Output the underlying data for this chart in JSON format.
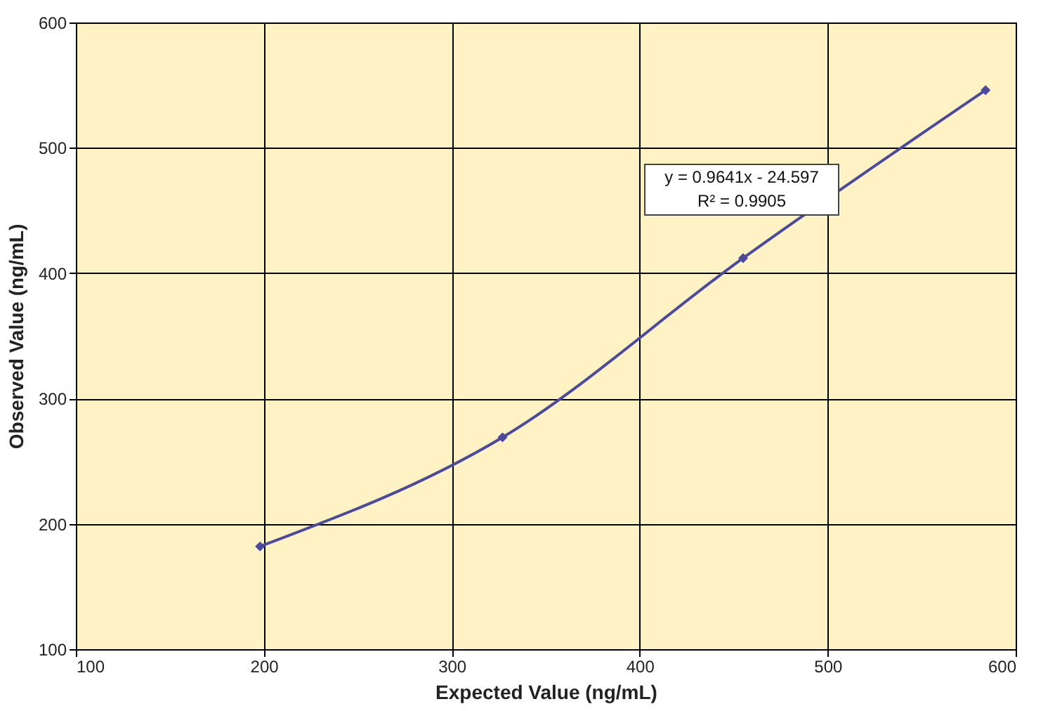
{
  "chart_data": {
    "type": "line",
    "xlabel": "Expected Value (ng/mL)",
    "ylabel": "Observed Value (ng/mL)",
    "x": [
      198,
      327,
      455,
      584
    ],
    "series": [
      {
        "color": "#4b4a9c",
        "values": [
          182,
          269,
          412,
          546
        ]
      }
    ],
    "xlim": [
      100,
      600
    ],
    "xticks": [
      100,
      200,
      300,
      400,
      500,
      600
    ],
    "ylim": [
      100,
      600
    ],
    "yticks": [
      100,
      200,
      300,
      400,
      500,
      600
    ],
    "grid": true,
    "marker": "diamond",
    "line_style": "solid",
    "annotations": [
      "y = 0.9641x - 24.597",
      "R² = 0.9905"
    ]
  }
}
